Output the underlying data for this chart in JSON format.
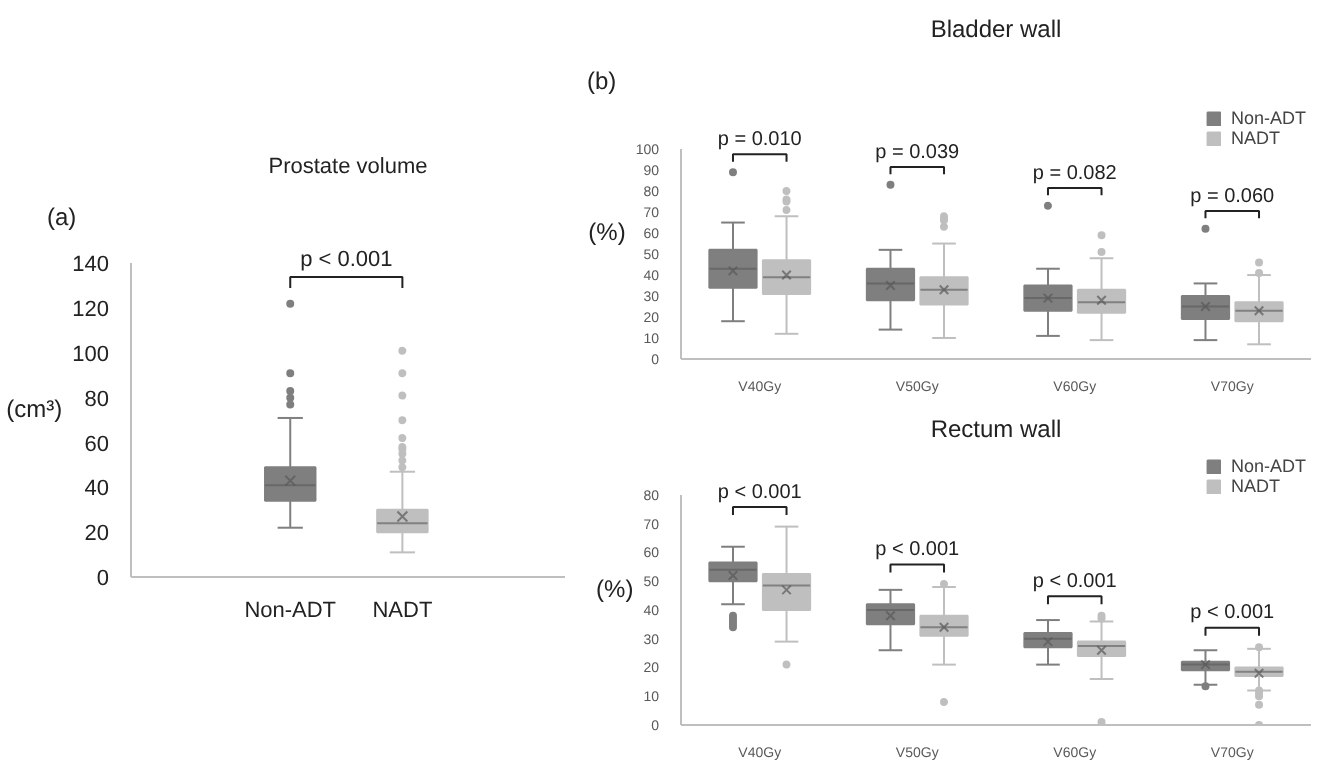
{
  "chart_data": [
    {
      "type": "box",
      "title": "Prostate volume",
      "ylabel": "(cm³)",
      "categories": [
        "Non-ADT",
        "NADT"
      ],
      "colors": [
        "#7f7f7f",
        "#bfbfbf"
      ],
      "ylim": [
        0,
        140
      ],
      "yticks": [
        0,
        20,
        40,
        60,
        80,
        100,
        120,
        140
      ],
      "annotations": [
        "(a)",
        "p < 0.001"
      ],
      "boxes": [
        {
          "low": 22,
          "q1": 34,
          "median": 41,
          "q3": 49,
          "high": 71,
          "mean": 43,
          "outliers": [
            77,
            80,
            83,
            91,
            122
          ]
        },
        {
          "low": 11,
          "q1": 20,
          "median": 24,
          "q3": 30,
          "high": 47,
          "mean": 27,
          "outliers": [
            49,
            52,
            55,
            57,
            58,
            62,
            70,
            81,
            91,
            101
          ]
        }
      ]
    },
    {
      "type": "box",
      "title": "Bladder wall",
      "ylabel": "(%)",
      "categories": [
        "V40Gy",
        "V50Gy",
        "V60Gy",
        "V70Gy"
      ],
      "ylim": [
        0,
        100
      ],
      "yticks": [
        0,
        10,
        20,
        30,
        40,
        50,
        60,
        70,
        80,
        90,
        100
      ],
      "legend": "top right",
      "annotations": [
        "(b)",
        "p = 0.010",
        "p = 0.039",
        "p = 0.082",
        "p = 0.060"
      ],
      "series": [
        {
          "name": "Non-ADT",
          "color": "#7f7f7f",
          "boxes": [
            {
              "low": 18,
              "q1": 34,
              "median": 43,
              "q3": 52,
              "high": 65,
              "mean": 42,
              "outliers": [
                89
              ]
            },
            {
              "low": 14,
              "q1": 28,
              "median": 36,
              "q3": 43,
              "high": 52,
              "mean": 35,
              "outliers": [
                83
              ]
            },
            {
              "low": 11,
              "q1": 23,
              "median": 29,
              "q3": 35,
              "high": 43,
              "mean": 29,
              "outliers": [
                73
              ]
            },
            {
              "low": 9,
              "q1": 19,
              "median": 25,
              "q3": 30,
              "high": 36,
              "mean": 25,
              "outliers": [
                62
              ]
            }
          ]
        },
        {
          "name": "NADT",
          "color": "#bfbfbf",
          "boxes": [
            {
              "low": 12,
              "q1": 31,
              "median": 39,
              "q3": 47,
              "high": 68,
              "mean": 40,
              "outliers": [
                71,
                75,
                76,
                80
              ]
            },
            {
              "low": 10,
              "q1": 26,
              "median": 33,
              "q3": 39,
              "high": 55,
              "mean": 33,
              "outliers": [
                63,
                66,
                67,
                68
              ]
            },
            {
              "low": 9,
              "q1": 22,
              "median": 27,
              "q3": 33,
              "high": 48,
              "mean": 28,
              "outliers": [
                51,
                59
              ]
            },
            {
              "low": 7,
              "q1": 18,
              "median": 23,
              "q3": 27,
              "high": 40,
              "mean": 23,
              "outliers": [
                41,
                46
              ]
            }
          ]
        }
      ]
    },
    {
      "type": "box",
      "title": "Rectum wall",
      "ylabel": "(%)",
      "categories": [
        "V40Gy",
        "V50Gy",
        "V60Gy",
        "V70Gy"
      ],
      "ylim": [
        0,
        80
      ],
      "yticks": [
        0,
        10,
        20,
        30,
        40,
        50,
        60,
        70,
        80
      ],
      "legend": "top right",
      "annotations": [
        "p < 0.001",
        "p < 0.001",
        "p < 0.001",
        "p < 0.001"
      ],
      "series": [
        {
          "name": "Non-ADT",
          "color": "#7f7f7f",
          "boxes": [
            {
              "low": 42,
              "q1": 50,
              "median": 54,
              "q3": 56.5,
              "high": 62,
              "mean": 52,
              "outliers": [
                34,
                35,
                36,
                37,
                38
              ]
            },
            {
              "low": 26,
              "q1": 35,
              "median": 40,
              "q3": 42,
              "high": 47,
              "mean": 38
            },
            {
              "low": 21,
              "q1": 27,
              "median": 30,
              "q3": 32,
              "high": 36.5,
              "mean": 29
            },
            {
              "low": 14,
              "q1": 19,
              "median": 21,
              "q3": 22,
              "high": 26,
              "mean": 21,
              "outliers": [
                13.5
              ]
            }
          ]
        },
        {
          "name": "NADT",
          "color": "#bfbfbf",
          "boxes": [
            {
              "low": 29,
              "q1": 40,
              "median": 48.5,
              "q3": 52.5,
              "high": 69,
              "mean": 47,
              "outliers": [
                21
              ]
            },
            {
              "low": 21,
              "q1": 31,
              "median": 34,
              "q3": 38,
              "high": 48,
              "mean": 34,
              "outliers": [
                8,
                49
              ]
            },
            {
              "low": 16,
              "q1": 24,
              "median": 27.5,
              "q3": 29,
              "high": 36,
              "mean": 26,
              "outliers": [
                1,
                37,
                38
              ]
            },
            {
              "low": 12,
              "q1": 17,
              "median": 18.5,
              "q3": 20,
              "high": 26.5,
              "mean": 18,
              "outliers": [
                0,
                7,
                10,
                11,
                12,
                27
              ]
            }
          ]
        }
      ]
    }
  ]
}
